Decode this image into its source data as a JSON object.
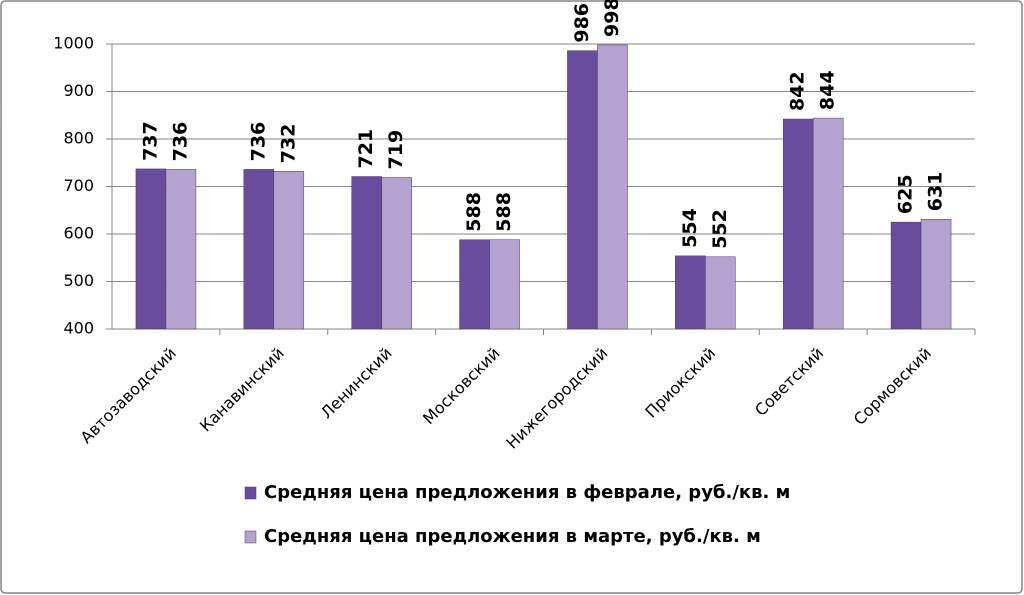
{
  "chart_data": {
    "type": "bar",
    "categories": [
      "Автозаводский",
      "Канавинский",
      "Ленинский",
      "Московский",
      "Нижегородский",
      "Приокский",
      "Советский",
      "Сормовский"
    ],
    "series": [
      {
        "name": "Средняя цена предложения в феврале, руб./кв. м",
        "color": "#6a4c9c",
        "values": [
          737,
          736,
          721,
          588,
          986,
          554,
          842,
          625
        ]
      },
      {
        "name": "Средняя цена предложения в марте, руб./кв. м",
        "color": "#b4a3cf",
        "values": [
          736,
          732,
          719,
          588,
          998,
          552,
          844,
          631
        ]
      }
    ],
    "ylim": [
      400,
      1000
    ],
    "yticks": [
      400,
      500,
      600,
      700,
      800,
      900,
      1000
    ],
    "grid": true,
    "legend": "bottom"
  }
}
